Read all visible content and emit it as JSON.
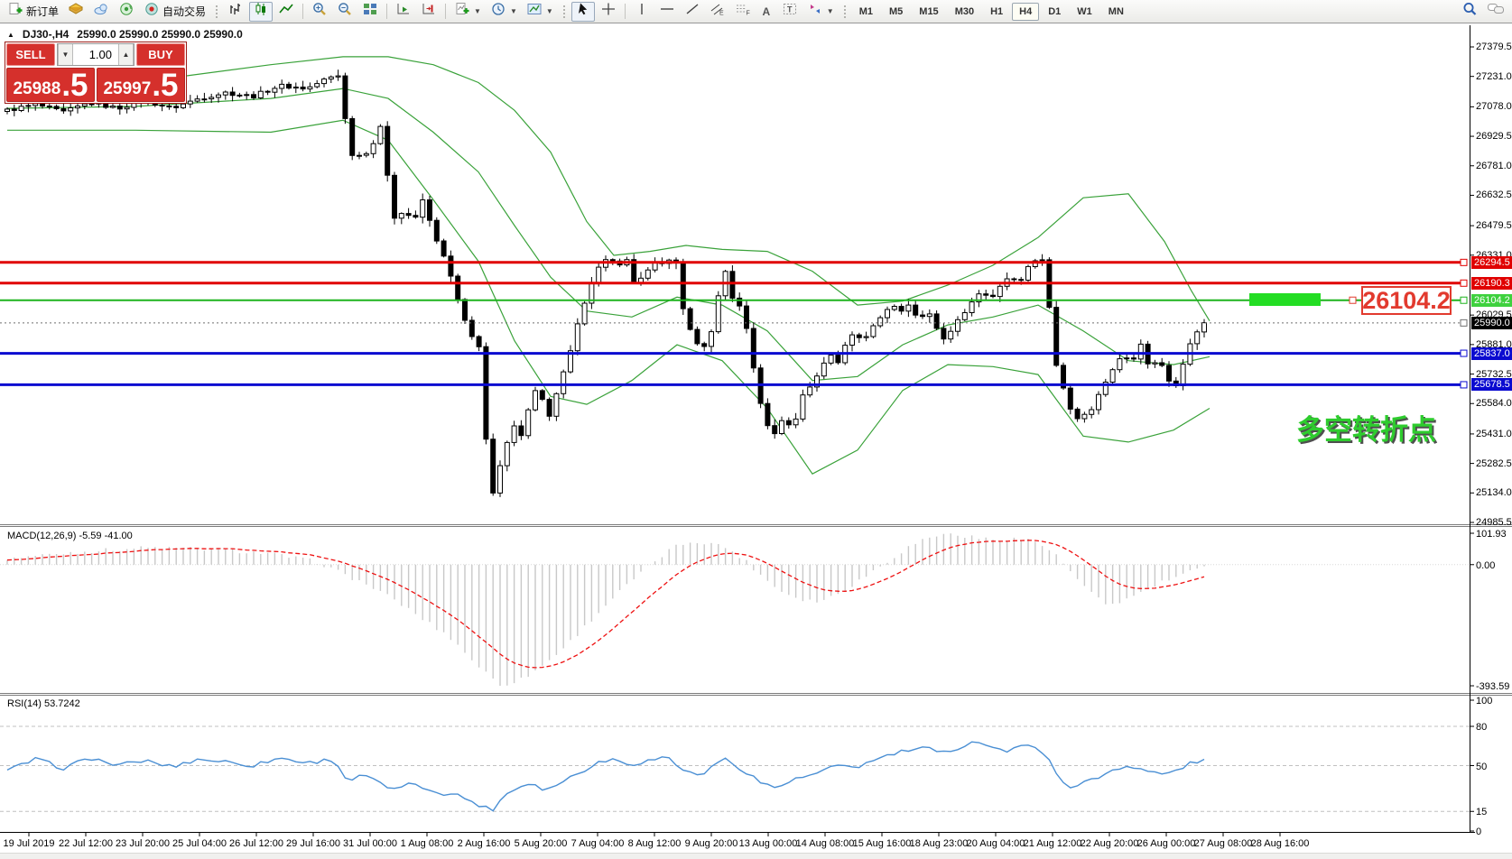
{
  "toolbar": {
    "new_order": "新订单",
    "autotrading": "自动交易",
    "timeframes": [
      "M1",
      "M5",
      "M15",
      "M30",
      "H1",
      "H4",
      "D1",
      "W1",
      "MN"
    ],
    "active_timeframe": "H4"
  },
  "chart_header": {
    "collapse": "▲",
    "symbol_period": "DJ30-,H4",
    "ohlc": "25990.0 25990.0 25990.0 25990.0"
  },
  "trade_panel": {
    "sell_label": "SELL",
    "buy_label": "BUY",
    "lot": "1.00",
    "down_arrow": "▼",
    "up_arrow": "▲",
    "sell_big": "25988",
    "sell_frac": ".5",
    "buy_big": "25997",
    "buy_frac": ".5"
  },
  "price_axis": {
    "ticks": [
      {
        "label": "27379.5",
        "price": 27379.5
      },
      {
        "label": "27231.0",
        "price": 27231.0
      },
      {
        "label": "27078.0",
        "price": 27078.0
      },
      {
        "label": "26929.5",
        "price": 26929.5
      },
      {
        "label": "26781.0",
        "price": 26781.0
      },
      {
        "label": "26632.5",
        "price": 26632.5
      },
      {
        "label": "26479.5",
        "price": 26479.5
      },
      {
        "label": "26331.0",
        "price": 26331.0
      },
      {
        "label": "26029.5",
        "price": 26029.5
      },
      {
        "label": "25881.0",
        "price": 25881.0
      },
      {
        "label": "25732.5",
        "price": 25732.5
      },
      {
        "label": "25584.0",
        "price": 25584.0
      },
      {
        "label": "25431.0",
        "price": 25431.0
      },
      {
        "label": "25282.5",
        "price": 25282.5
      },
      {
        "label": "25134.0",
        "price": 25134.0
      },
      {
        "label": "24985.5",
        "price": 24985.5
      }
    ],
    "tags": [
      {
        "label": "26294.5",
        "price": 26294.5,
        "bg": "#e00000",
        "line": "#e00000",
        "lw": 3,
        "dash": ""
      },
      {
        "label": "26190.3",
        "price": 26190.3,
        "bg": "#e00000",
        "line": "#e00000",
        "lw": 3,
        "dash": ""
      },
      {
        "label": "26104.2",
        "price": 26104.2,
        "bg": "#3ed13e",
        "line": "#1db31d",
        "lw": 2,
        "dash": ""
      },
      {
        "label": "25990.0",
        "price": 25990.0,
        "bg": "#000000",
        "line": "#6f6f6f",
        "lw": 1,
        "dash": "2 3"
      },
      {
        "label": "25837.0",
        "price": 25837.0,
        "bg": "#0a0ad0",
        "line": "#0a0ad0",
        "lw": 3,
        "dash": ""
      },
      {
        "label": "25678.5",
        "price": 25678.5,
        "bg": "#0a0ad0",
        "line": "#0a0ad0",
        "lw": 3,
        "dash": ""
      }
    ]
  },
  "annotations": {
    "callout": "26104.2",
    "note_cn": "多空转折点"
  },
  "macd_panel": {
    "label": "MACD(12,26,9) -5.59 -41.00",
    "axis": [
      {
        "label": "101.93",
        "v": 101.93
      },
      {
        "label": "0.00",
        "v": 0
      },
      {
        "label": "-393.59",
        "v": -393.59
      }
    ]
  },
  "rsi_panel": {
    "label": "RSI(14) 53.7242",
    "axis": [
      {
        "label": "100",
        "v": 100
      },
      {
        "label": "80",
        "v": 80
      },
      {
        "label": "50",
        "v": 50
      },
      {
        "label": "15",
        "v": 15
      },
      {
        "label": "0",
        "v": 0
      }
    ],
    "levels": [
      80,
      50,
      15
    ]
  },
  "time_axis": [
    "19 Jul 2019",
    "22 Jul 12:00",
    "23 Jul 20:00",
    "25 Jul 04:00",
    "26 Jul 12:00",
    "29 Jul 16:00",
    "31 Jul 00:00",
    "1 Aug 08:00",
    "2 Aug 16:00",
    "5 Aug 20:00",
    "7 Aug 04:00",
    "8 Aug 12:00",
    "9 Aug 20:00",
    "13 Aug 00:00",
    "14 Aug 08:00",
    "15 Aug 16:00",
    "18 Aug 23:00",
    "20 Aug 04:00",
    "21 Aug 12:00",
    "22 Aug 20:00",
    "26 Aug 00:00",
    "27 Aug 08:00",
    "28 Aug 16:00"
  ],
  "colors": {
    "band_green": "#3aa23a",
    "candle": "#000000",
    "bull_body": "#ffffff",
    "bear_body": "#000000",
    "macd_bar": "#c8c8c8",
    "macd_signal": "#ee1111",
    "rsi_line": "#4a8fd4",
    "level_dash": "#c0c0c0",
    "panel_red": "#d5302c",
    "tag_red": "#e00000",
    "tag_green": "#3ed13e",
    "tag_blue": "#0a0ad0"
  },
  "chart_data": {
    "type": "candlestick",
    "symbol": "DJ30-",
    "period": "H4",
    "price_range": [
      24985.5,
      27379.5
    ],
    "close_anchors": [
      [
        8,
        27060
      ],
      [
        40,
        27090
      ],
      [
        70,
        27050
      ],
      [
        100,
        27100
      ],
      [
        130,
        27070
      ],
      [
        160,
        27110
      ],
      [
        190,
        27070
      ],
      [
        220,
        27120
      ],
      [
        250,
        27150
      ],
      [
        280,
        27130
      ],
      [
        310,
        27185
      ],
      [
        340,
        27170
      ],
      [
        362,
        27220
      ],
      [
        375,
        27235
      ],
      [
        385,
        26950
      ],
      [
        392,
        26790
      ],
      [
        400,
        26860
      ],
      [
        410,
        26830
      ],
      [
        420,
        27030
      ],
      [
        428,
        26760
      ],
      [
        436,
        26520
      ],
      [
        448,
        26560
      ],
      [
        458,
        26500
      ],
      [
        470,
        26620
      ],
      [
        480,
        26430
      ],
      [
        492,
        26330
      ],
      [
        504,
        26150
      ],
      [
        514,
        26010
      ],
      [
        524,
        25900
      ],
      [
        532,
        25860
      ],
      [
        540,
        25300
      ],
      [
        546,
        25130
      ],
      [
        558,
        25330
      ],
      [
        568,
        25470
      ],
      [
        578,
        25430
      ],
      [
        588,
        25610
      ],
      [
        598,
        25680
      ],
      [
        606,
        25480
      ],
      [
        616,
        25620
      ],
      [
        628,
        25790
      ],
      [
        640,
        25980
      ],
      [
        652,
        26140
      ],
      [
        664,
        26290
      ],
      [
        674,
        26330
      ],
      [
        684,
        26260
      ],
      [
        694,
        26310
      ],
      [
        704,
        26180
      ],
      [
        714,
        26230
      ],
      [
        724,
        26300
      ],
      [
        736,
        26280
      ],
      [
        748,
        26320
      ],
      [
        756,
        26080
      ],
      [
        766,
        25930
      ],
      [
        776,
        25860
      ],
      [
        786,
        25900
      ],
      [
        794,
        26050
      ],
      [
        800,
        26330
      ],
      [
        808,
        26140
      ],
      [
        818,
        26090
      ],
      [
        828,
        25950
      ],
      [
        838,
        25680
      ],
      [
        848,
        25480
      ],
      [
        858,
        25430
      ],
      [
        868,
        25520
      ],
      [
        878,
        25460
      ],
      [
        888,
        25610
      ],
      [
        898,
        25680
      ],
      [
        908,
        25740
      ],
      [
        918,
        25840
      ],
      [
        928,
        25790
      ],
      [
        938,
        25900
      ],
      [
        948,
        25940
      ],
      [
        958,
        25900
      ],
      [
        968,
        25990
      ],
      [
        978,
        26030
      ],
      [
        988,
        26090
      ],
      [
        998,
        26040
      ],
      [
        1008,
        26080
      ],
      [
        1018,
        26000
      ],
      [
        1028,
        26040
      ],
      [
        1038,
        25960
      ],
      [
        1048,
        25900
      ],
      [
        1058,
        25980
      ],
      [
        1068,
        26040
      ],
      [
        1078,
        26110
      ],
      [
        1088,
        26160
      ],
      [
        1098,
        26110
      ],
      [
        1108,
        26170
      ],
      [
        1118,
        26230
      ],
      [
        1128,
        26190
      ],
      [
        1138,
        26260
      ],
      [
        1148,
        26320
      ],
      [
        1158,
        26300
      ],
      [
        1166,
        25880
      ],
      [
        1174,
        25690
      ],
      [
        1182,
        25640
      ],
      [
        1190,
        25470
      ],
      [
        1198,
        25560
      ],
      [
        1206,
        25510
      ],
      [
        1214,
        25610
      ],
      [
        1224,
        25690
      ],
      [
        1234,
        25760
      ],
      [
        1244,
        25840
      ],
      [
        1254,
        25800
      ],
      [
        1264,
        25880
      ],
      [
        1274,
        25760
      ],
      [
        1284,
        25810
      ],
      [
        1294,
        25710
      ],
      [
        1302,
        25670
      ],
      [
        1312,
        25810
      ],
      [
        1322,
        25920
      ],
      [
        1332,
        25985
      ],
      [
        1338,
        25990
      ]
    ],
    "bb_upper": [
      [
        8,
        27180
      ],
      [
        150,
        27200
      ],
      [
        300,
        27290
      ],
      [
        380,
        27330
      ],
      [
        430,
        27330
      ],
      [
        480,
        27290
      ],
      [
        530,
        27200
      ],
      [
        570,
        27060
      ],
      [
        610,
        26850
      ],
      [
        650,
        26500
      ],
      [
        680,
        26330
      ],
      [
        720,
        26350
      ],
      [
        760,
        26380
      ],
      [
        800,
        26360
      ],
      [
        850,
        26350
      ],
      [
        900,
        26250
      ],
      [
        950,
        26080
      ],
      [
        1000,
        26100
      ],
      [
        1050,
        26180
      ],
      [
        1100,
        26280
      ],
      [
        1150,
        26420
      ],
      [
        1200,
        26620
      ],
      [
        1250,
        26640
      ],
      [
        1290,
        26400
      ],
      [
        1320,
        26150
      ],
      [
        1340,
        26000
      ]
    ],
    "bb_middle": [
      [
        8,
        27070
      ],
      [
        150,
        27080
      ],
      [
        300,
        27120
      ],
      [
        380,
        27170
      ],
      [
        430,
        27120
      ],
      [
        480,
        26950
      ],
      [
        530,
        26750
      ],
      [
        570,
        26480
      ],
      [
        610,
        26220
      ],
      [
        650,
        26050
      ],
      [
        700,
        26020
      ],
      [
        750,
        26120
      ],
      [
        800,
        26080
      ],
      [
        850,
        25950
      ],
      [
        900,
        25700
      ],
      [
        950,
        25720
      ],
      [
        1000,
        25880
      ],
      [
        1050,
        25980
      ],
      [
        1100,
        26020
      ],
      [
        1150,
        26080
      ],
      [
        1200,
        25950
      ],
      [
        1250,
        25800
      ],
      [
        1300,
        25780
      ],
      [
        1340,
        25820
      ]
    ],
    "bb_lower": [
      [
        8,
        26960
      ],
      [
        150,
        26960
      ],
      [
        300,
        26950
      ],
      [
        380,
        27010
      ],
      [
        430,
        26910
      ],
      [
        480,
        26610
      ],
      [
        530,
        26300
      ],
      [
        570,
        25900
      ],
      [
        610,
        25620
      ],
      [
        650,
        25580
      ],
      [
        700,
        25700
      ],
      [
        750,
        25880
      ],
      [
        800,
        25800
      ],
      [
        850,
        25560
      ],
      [
        900,
        25230
      ],
      [
        950,
        25350
      ],
      [
        1000,
        25650
      ],
      [
        1050,
        25780
      ],
      [
        1100,
        25770
      ],
      [
        1150,
        25730
      ],
      [
        1200,
        25420
      ],
      [
        1250,
        25390
      ],
      [
        1300,
        25450
      ],
      [
        1340,
        25560
      ]
    ],
    "macd_anchors": [
      [
        8,
        20
      ],
      [
        80,
        40
      ],
      [
        160,
        55
      ],
      [
        240,
        50
      ],
      [
        300,
        35
      ],
      [
        350,
        10
      ],
      [
        380,
        -30
      ],
      [
        410,
        -70
      ],
      [
        440,
        -120
      ],
      [
        470,
        -180
      ],
      [
        500,
        -240
      ],
      [
        530,
        -330
      ],
      [
        555,
        -393
      ],
      [
        580,
        -370
      ],
      [
        605,
        -320
      ],
      [
        630,
        -255
      ],
      [
        655,
        -180
      ],
      [
        680,
        -105
      ],
      [
        705,
        -40
      ],
      [
        725,
        10
      ],
      [
        745,
        55
      ],
      [
        765,
        75
      ],
      [
        785,
        72
      ],
      [
        805,
        55
      ],
      [
        825,
        15
      ],
      [
        845,
        -40
      ],
      [
        865,
        -85
      ],
      [
        885,
        -110
      ],
      [
        905,
        -120
      ],
      [
        925,
        -100
      ],
      [
        945,
        -65
      ],
      [
        965,
        -25
      ],
      [
        985,
        15
      ],
      [
        1005,
        55
      ],
      [
        1025,
        85
      ],
      [
        1045,
        100
      ],
      [
        1065,
        95
      ],
      [
        1085,
        85
      ],
      [
        1105,
        80
      ],
      [
        1125,
        85
      ],
      [
        1145,
        78
      ],
      [
        1165,
        45
      ],
      [
        1185,
        -20
      ],
      [
        1205,
        -85
      ],
      [
        1225,
        -130
      ],
      [
        1245,
        -118
      ],
      [
        1265,
        -88
      ],
      [
        1285,
        -60
      ],
      [
        1305,
        -38
      ],
      [
        1325,
        -18
      ],
      [
        1338,
        -6
      ]
    ],
    "rsi_anchors": [
      [
        8,
        46
      ],
      [
        40,
        55
      ],
      [
        70,
        48
      ],
      [
        100,
        56
      ],
      [
        130,
        50
      ],
      [
        160,
        54
      ],
      [
        190,
        49
      ],
      [
        220,
        55
      ],
      [
        250,
        53
      ],
      [
        280,
        50
      ],
      [
        310,
        56
      ],
      [
        340,
        52
      ],
      [
        370,
        55
      ],
      [
        385,
        38
      ],
      [
        400,
        42
      ],
      [
        415,
        40
      ],
      [
        430,
        31
      ],
      [
        450,
        36
      ],
      [
        470,
        33
      ],
      [
        490,
        29
      ],
      [
        510,
        27
      ],
      [
        530,
        20
      ],
      [
        545,
        16
      ],
      [
        560,
        28
      ],
      [
        575,
        34
      ],
      [
        590,
        37
      ],
      [
        605,
        31
      ],
      [
        620,
        37
      ],
      [
        640,
        44
      ],
      [
        660,
        52
      ],
      [
        680,
        55
      ],
      [
        700,
        51
      ],
      [
        720,
        54
      ],
      [
        740,
        57
      ],
      [
        755,
        47
      ],
      [
        770,
        43
      ],
      [
        785,
        46
      ],
      [
        800,
        56
      ],
      [
        815,
        50
      ],
      [
        830,
        44
      ],
      [
        845,
        36
      ],
      [
        860,
        33
      ],
      [
        875,
        38
      ],
      [
        890,
        41
      ],
      [
        905,
        44
      ],
      [
        920,
        48
      ],
      [
        935,
        50
      ],
      [
        950,
        49
      ],
      [
        965,
        53
      ],
      [
        980,
        57
      ],
      [
        995,
        60
      ],
      [
        1010,
        62
      ],
      [
        1025,
        64
      ],
      [
        1040,
        59
      ],
      [
        1055,
        62
      ],
      [
        1070,
        66
      ],
      [
        1085,
        69
      ],
      [
        1100,
        64
      ],
      [
        1115,
        61
      ],
      [
        1130,
        64
      ],
      [
        1145,
        66
      ],
      [
        1160,
        58
      ],
      [
        1172,
        40
      ],
      [
        1185,
        34
      ],
      [
        1200,
        37
      ],
      [
        1215,
        40
      ],
      [
        1230,
        46
      ],
      [
        1245,
        50
      ],
      [
        1260,
        48
      ],
      [
        1275,
        45
      ],
      [
        1290,
        43
      ],
      [
        1305,
        47
      ],
      [
        1320,
        52
      ],
      [
        1335,
        54
      ]
    ]
  }
}
